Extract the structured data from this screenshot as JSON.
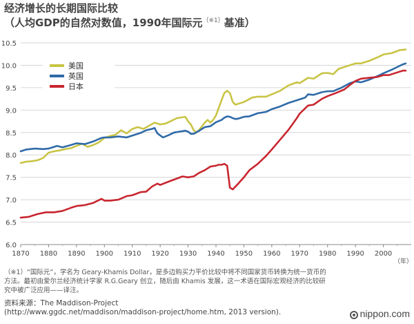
{
  "header": {
    "title": "经济增长的长期国际比较",
    "subtitle_main": "（人均GDP的自然对数值，1990年国际元",
    "subtitle_mark": "（※1）",
    "subtitle_end": "基准）"
  },
  "footer": {
    "note": "（※1）“国际元”，学名为 Geary-Khamis Dollar，是多边购买力平价比较中将不同国家货币转换为统一货币的方法。最初由爱尔兰经济统计学家 R.G.Geary 创立，随后由 Khamis 发展，这一术语在国际宏观经济的比较研究中被广泛应用——译注。",
    "source_label": "资料来源：The Maddison-Project",
    "source_url": "(http://www.ggdc.net/maddison/maddison-project/home.htm, 2013 version).",
    "brand": "nippon.com"
  },
  "chart_data": {
    "type": "line",
    "title": "经济增长的长期国际比较",
    "xlabel": "（年）",
    "ylabel": "",
    "xlim": [
      1870,
      2010
    ],
    "ylim": [
      6.0,
      10.5
    ],
    "xticks": [
      1870,
      1880,
      1890,
      1900,
      1910,
      1920,
      1930,
      1940,
      1950,
      1960,
      1970,
      1980,
      1990,
      2000
    ],
    "yticks": [
      6.0,
      6.5,
      7.0,
      7.5,
      8.0,
      8.5,
      9.0,
      9.5,
      10.0,
      10.5
    ],
    "ytick_labels": [
      "6.0",
      "6.5",
      "7.0",
      "7.5",
      "8.0",
      "8.5",
      "9.0",
      "9.5",
      "10.0",
      "10.5"
    ],
    "grid": true,
    "legend_position": "top-left",
    "series": [
      {
        "name": "美国",
        "color": "#c9c445",
        "points": [
          [
            1870,
            7.82
          ],
          [
            1872,
            7.85
          ],
          [
            1874,
            7.86
          ],
          [
            1876,
            7.88
          ],
          [
            1878,
            7.93
          ],
          [
            1880,
            8.05
          ],
          [
            1882,
            8.08
          ],
          [
            1884,
            8.1
          ],
          [
            1886,
            8.13
          ],
          [
            1888,
            8.15
          ],
          [
            1890,
            8.2
          ],
          [
            1892,
            8.25
          ],
          [
            1894,
            8.18
          ],
          [
            1896,
            8.22
          ],
          [
            1898,
            8.28
          ],
          [
            1900,
            8.38
          ],
          [
            1902,
            8.42
          ],
          [
            1904,
            8.45
          ],
          [
            1906,
            8.55
          ],
          [
            1908,
            8.48
          ],
          [
            1910,
            8.58
          ],
          [
            1912,
            8.62
          ],
          [
            1914,
            8.58
          ],
          [
            1916,
            8.65
          ],
          [
            1918,
            8.72
          ],
          [
            1920,
            8.68
          ],
          [
            1922,
            8.7
          ],
          [
            1924,
            8.76
          ],
          [
            1926,
            8.82
          ],
          [
            1929,
            8.85
          ],
          [
            1930,
            8.75
          ],
          [
            1931,
            8.68
          ],
          [
            1932,
            8.55
          ],
          [
            1933,
            8.5
          ],
          [
            1934,
            8.56
          ],
          [
            1936,
            8.72
          ],
          [
            1937,
            8.78
          ],
          [
            1938,
            8.72
          ],
          [
            1939,
            8.78
          ],
          [
            1940,
            8.88
          ],
          [
            1941,
            9.05
          ],
          [
            1942,
            9.22
          ],
          [
            1943,
            9.38
          ],
          [
            1944,
            9.43
          ],
          [
            1945,
            9.38
          ],
          [
            1946,
            9.18
          ],
          [
            1947,
            9.12
          ],
          [
            1948,
            9.14
          ],
          [
            1950,
            9.18
          ],
          [
            1953,
            9.28
          ],
          [
            1955,
            9.3
          ],
          [
            1958,
            9.3
          ],
          [
            1960,
            9.35
          ],
          [
            1963,
            9.43
          ],
          [
            1966,
            9.55
          ],
          [
            1969,
            9.62
          ],
          [
            1970,
            9.6
          ],
          [
            1973,
            9.72
          ],
          [
            1975,
            9.7
          ],
          [
            1978,
            9.82
          ],
          [
            1980,
            9.83
          ],
          [
            1982,
            9.8
          ],
          [
            1984,
            9.92
          ],
          [
            1987,
            9.98
          ],
          [
            1990,
            10.04
          ],
          [
            1992,
            10.04
          ],
          [
            1995,
            10.1
          ],
          [
            1998,
            10.18
          ],
          [
            2000,
            10.24
          ],
          [
            2003,
            10.27
          ],
          [
            2006,
            10.34
          ],
          [
            2008,
            10.35
          ]
        ]
      },
      {
        "name": "英国",
        "color": "#2f6aa8",
        "points": [
          [
            1870,
            8.08
          ],
          [
            1872,
            8.12
          ],
          [
            1875,
            8.14
          ],
          [
            1878,
            8.13
          ],
          [
            1880,
            8.14
          ],
          [
            1883,
            8.2
          ],
          [
            1885,
            8.17
          ],
          [
            1888,
            8.22
          ],
          [
            1890,
            8.26
          ],
          [
            1893,
            8.24
          ],
          [
            1896,
            8.3
          ],
          [
            1899,
            8.38
          ],
          [
            1900,
            8.39
          ],
          [
            1902,
            8.39
          ],
          [
            1905,
            8.41
          ],
          [
            1908,
            8.39
          ],
          [
            1910,
            8.43
          ],
          [
            1913,
            8.49
          ],
          [
            1915,
            8.55
          ],
          [
            1917,
            8.58
          ],
          [
            1918,
            8.6
          ],
          [
            1919,
            8.48
          ],
          [
            1921,
            8.39
          ],
          [
            1923,
            8.44
          ],
          [
            1925,
            8.5
          ],
          [
            1927,
            8.52
          ],
          [
            1929,
            8.54
          ],
          [
            1930,
            8.52
          ],
          [
            1931,
            8.47
          ],
          [
            1932,
            8.47
          ],
          [
            1934,
            8.54
          ],
          [
            1936,
            8.62
          ],
          [
            1938,
            8.64
          ],
          [
            1940,
            8.73
          ],
          [
            1942,
            8.78
          ],
          [
            1943,
            8.83
          ],
          [
            1944,
            8.86
          ],
          [
            1945,
            8.85
          ],
          [
            1946,
            8.82
          ],
          [
            1947,
            8.8
          ],
          [
            1948,
            8.81
          ],
          [
            1950,
            8.85
          ],
          [
            1952,
            8.86
          ],
          [
            1955,
            8.93
          ],
          [
            1958,
            8.96
          ],
          [
            1960,
            9.02
          ],
          [
            1963,
            9.08
          ],
          [
            1966,
            9.16
          ],
          [
            1969,
            9.22
          ],
          [
            1972,
            9.28
          ],
          [
            1973,
            9.35
          ],
          [
            1975,
            9.34
          ],
          [
            1978,
            9.4
          ],
          [
            1980,
            9.42
          ],
          [
            1982,
            9.42
          ],
          [
            1985,
            9.5
          ],
          [
            1988,
            9.6
          ],
          [
            1990,
            9.64
          ],
          [
            1992,
            9.62
          ],
          [
            1995,
            9.68
          ],
          [
            1998,
            9.76
          ],
          [
            2000,
            9.82
          ],
          [
            2003,
            9.9
          ],
          [
            2005,
            9.96
          ],
          [
            2007,
            10.02
          ],
          [
            2008,
            10.04
          ]
        ]
      },
      {
        "name": "日本",
        "color": "#c8262f",
        "points": [
          [
            1870,
            6.6
          ],
          [
            1873,
            6.62
          ],
          [
            1876,
            6.68
          ],
          [
            1879,
            6.72
          ],
          [
            1882,
            6.72
          ],
          [
            1885,
            6.75
          ],
          [
            1888,
            6.82
          ],
          [
            1890,
            6.86
          ],
          [
            1893,
            6.88
          ],
          [
            1896,
            6.93
          ],
          [
            1899,
            7.02
          ],
          [
            1900,
            6.98
          ],
          [
            1902,
            6.98
          ],
          [
            1905,
            7.0
          ],
          [
            1908,
            7.08
          ],
          [
            1910,
            7.1
          ],
          [
            1913,
            7.17
          ],
          [
            1915,
            7.18
          ],
          [
            1917,
            7.29
          ],
          [
            1919,
            7.36
          ],
          [
            1920,
            7.33
          ],
          [
            1922,
            7.38
          ],
          [
            1925,
            7.45
          ],
          [
            1928,
            7.52
          ],
          [
            1930,
            7.5
          ],
          [
            1932,
            7.52
          ],
          [
            1934,
            7.6
          ],
          [
            1936,
            7.66
          ],
          [
            1938,
            7.74
          ],
          [
            1940,
            7.76
          ],
          [
            1941,
            7.78
          ],
          [
            1942,
            7.78
          ],
          [
            1943,
            7.8
          ],
          [
            1944,
            7.76
          ],
          [
            1945,
            7.27
          ],
          [
            1946,
            7.23
          ],
          [
            1948,
            7.36
          ],
          [
            1950,
            7.5
          ],
          [
            1952,
            7.66
          ],
          [
            1955,
            7.8
          ],
          [
            1958,
            7.98
          ],
          [
            1960,
            8.12
          ],
          [
            1963,
            8.34
          ],
          [
            1966,
            8.56
          ],
          [
            1969,
            8.82
          ],
          [
            1970,
            8.92
          ],
          [
            1973,
            9.1
          ],
          [
            1975,
            9.12
          ],
          [
            1978,
            9.25
          ],
          [
            1980,
            9.31
          ],
          [
            1983,
            9.38
          ],
          [
            1986,
            9.46
          ],
          [
            1988,
            9.56
          ],
          [
            1990,
            9.65
          ],
          [
            1992,
            9.7
          ],
          [
            1995,
            9.72
          ],
          [
            1998,
            9.74
          ],
          [
            2000,
            9.78
          ],
          [
            2002,
            9.78
          ],
          [
            2005,
            9.84
          ],
          [
            2007,
            9.88
          ],
          [
            2008,
            9.88
          ]
        ]
      }
    ]
  }
}
